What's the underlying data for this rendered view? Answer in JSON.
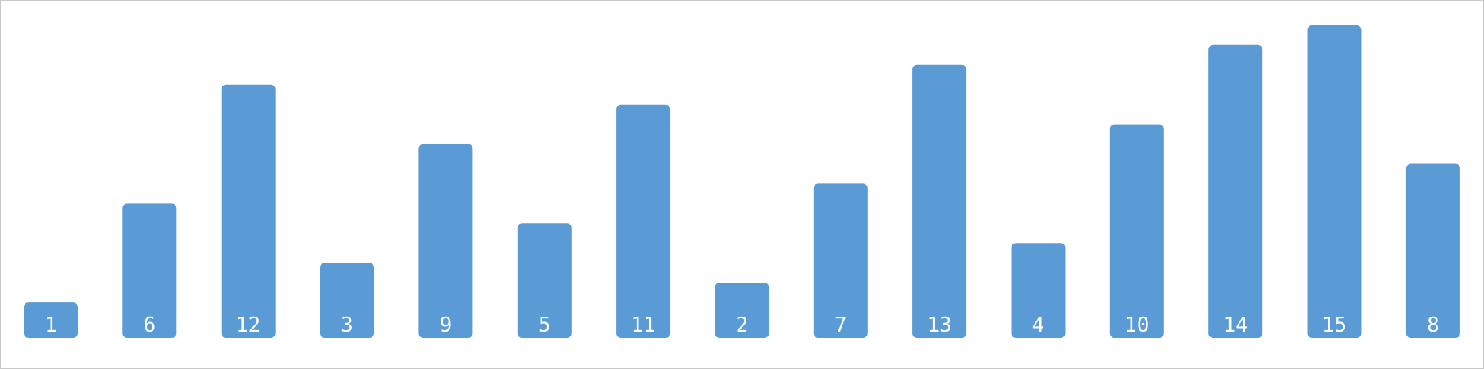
{
  "colors": {
    "bar": "#5b9bd5",
    "label": "#ffffff",
    "background": "#ffffff",
    "border": "#c8c8c8"
  },
  "chart_data": {
    "type": "bar",
    "title": "",
    "xlabel": "",
    "ylabel": "",
    "grid": false,
    "legend": "none",
    "data_labels": "inside-bottom",
    "ylim": [
      0,
      16
    ],
    "categories": [
      "1",
      "6",
      "12",
      "3",
      "9",
      "5",
      "11",
      "2",
      "7",
      "13",
      "4",
      "10",
      "14",
      "15",
      "8"
    ],
    "values": [
      1,
      6,
      12,
      3,
      9,
      5,
      11,
      2,
      7,
      13,
      4,
      10,
      14,
      15,
      8
    ]
  }
}
